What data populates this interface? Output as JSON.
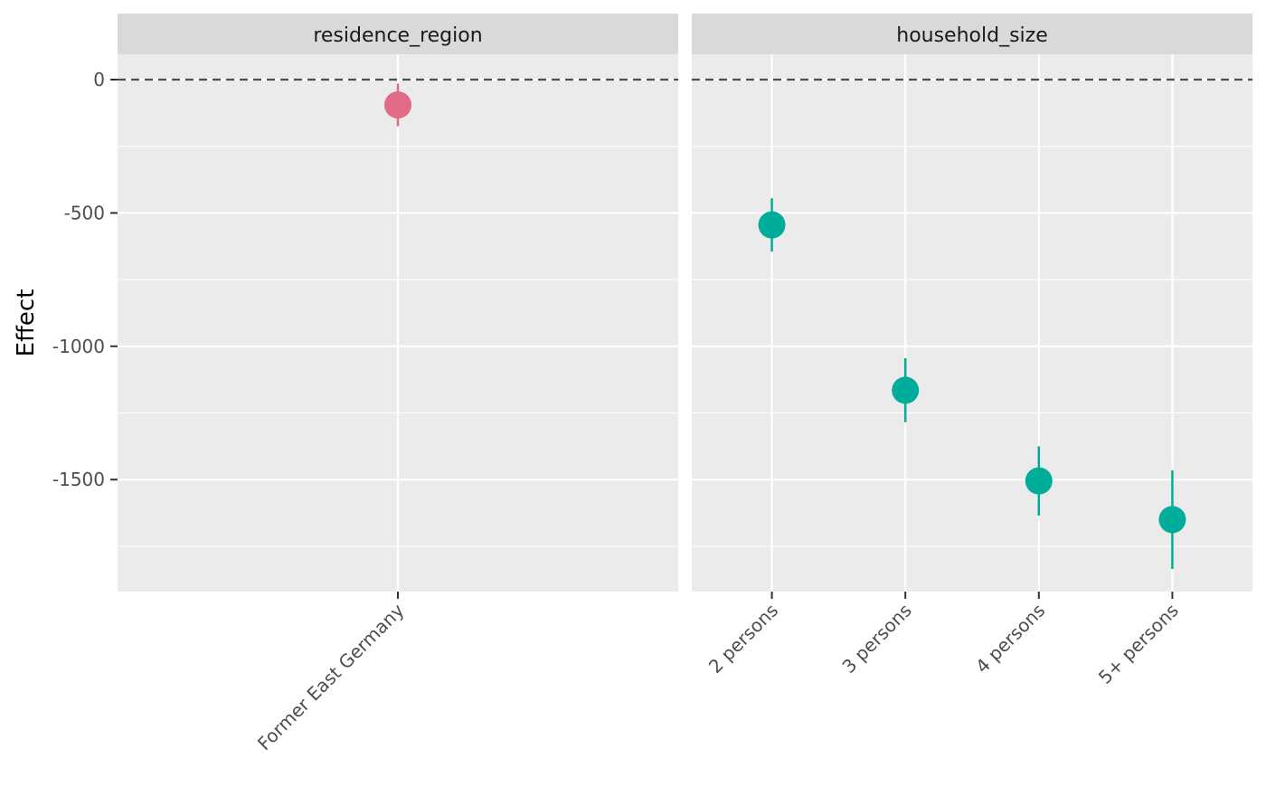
{
  "chart_data": {
    "type": "scatter",
    "ylabel": "Effect",
    "xlabel": "",
    "ylim": [
      -1920,
      95
    ],
    "yticks": [
      0,
      -500,
      -1000,
      -1500
    ],
    "ytick_labels": [
      "0",
      "-500",
      "-1000",
      "-1500"
    ],
    "reference_line": 0,
    "grid": true,
    "legend": "none",
    "colors": {
      "residence_region": "#e16a86",
      "household_size": "#00ad9a",
      "panel_background": "#ebebeb",
      "strip_background": "#d9d9d9",
      "gridline": "#ffffff",
      "reference_line": "#4d4d4d"
    },
    "panels": [
      {
        "title": "residence_region",
        "categories": [
          "Former East Germany"
        ],
        "points": [
          {
            "label": "Former East Germany",
            "y": -95,
            "lower": -175,
            "upper": -15
          }
        ]
      },
      {
        "title": "household_size",
        "categories": [
          "2 persons",
          "3 persons",
          "4 persons",
          "5+ persons"
        ],
        "points": [
          {
            "label": "2 persons",
            "y": -545,
            "lower": -645,
            "upper": -445
          },
          {
            "label": "3 persons",
            "y": -1165,
            "lower": -1285,
            "upper": -1045
          },
          {
            "label": "4 persons",
            "y": -1505,
            "lower": -1635,
            "upper": -1375
          },
          {
            "label": "5+ persons",
            "y": -1650,
            "lower": -1835,
            "upper": -1465
          }
        ]
      }
    ]
  }
}
